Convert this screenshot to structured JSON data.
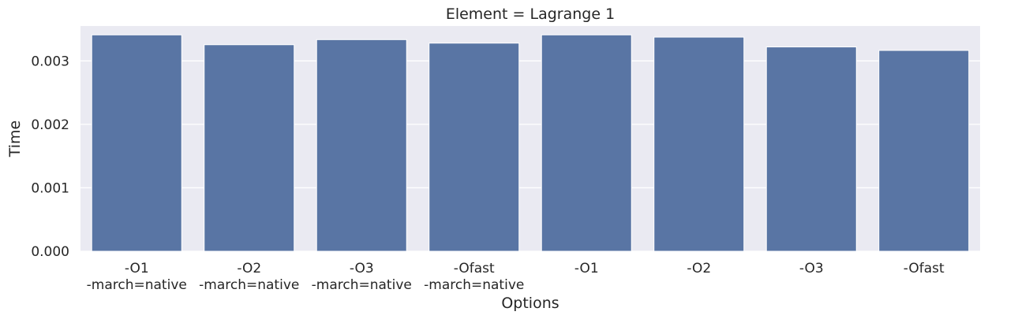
{
  "chart_data": {
    "type": "bar",
    "title": "Element = Lagrange 1",
    "xlabel": "Options",
    "ylabel": "Time",
    "categories": [
      [
        "-O1",
        "-march=native"
      ],
      [
        "-O2",
        "-march=native"
      ],
      [
        "-O3",
        "-march=native"
      ],
      [
        "-Ofast",
        "-march=native"
      ],
      [
        "-O1"
      ],
      [
        "-O2"
      ],
      [
        "-O3"
      ],
      [
        "-Ofast"
      ]
    ],
    "values": [
      0.00341,
      0.003255,
      0.003335,
      0.00328,
      0.00341,
      0.003375,
      0.00322,
      0.003165
    ],
    "ylim": [
      0,
      0.00355
    ],
    "yticks": [
      0,
      0.001,
      0.002,
      0.003
    ],
    "ytick_labels": [
      "0.000",
      "0.001",
      "0.002",
      "0.003"
    ],
    "grid": true,
    "colors": {
      "bar": "#5975a4",
      "background": "#eaeaf2",
      "grid": "#ffffff"
    }
  }
}
